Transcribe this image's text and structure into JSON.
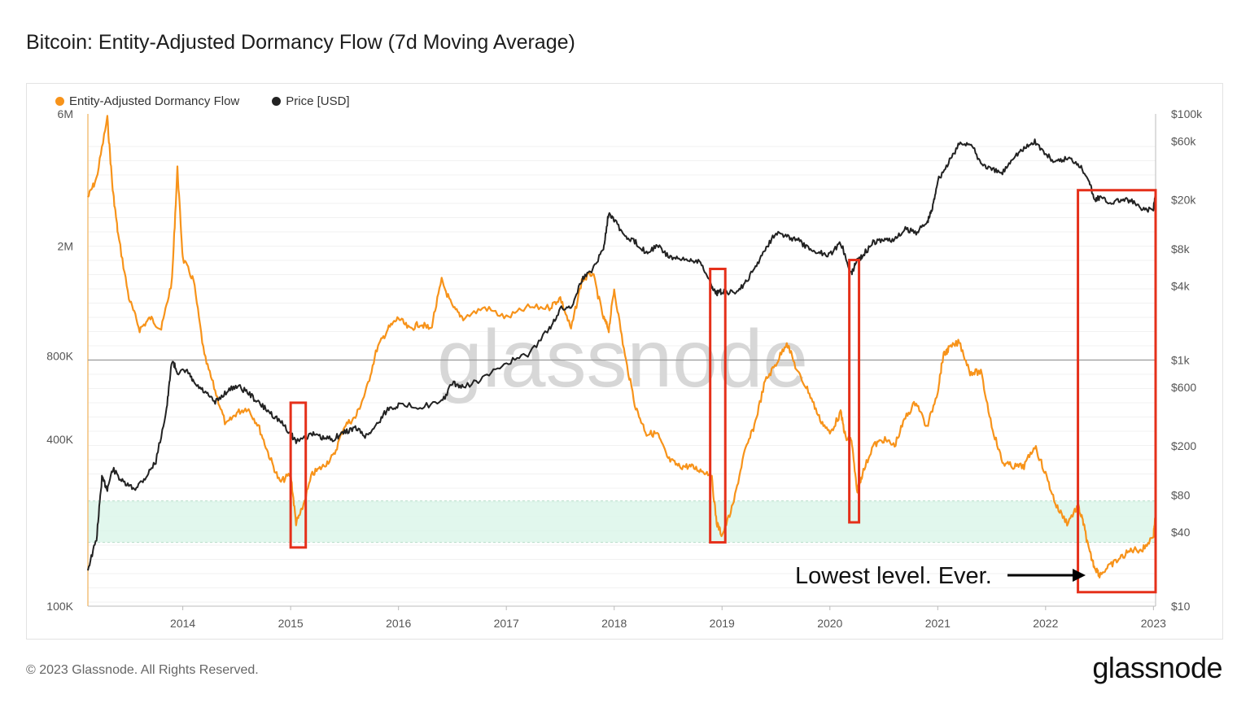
{
  "title": "Bitcoin: Entity-Adjusted Dormancy Flow (7d Moving Average)",
  "footer": "© 2023 Glassnode. All Rights Reserved.",
  "brand": "glassnode",
  "watermark": "glassnode",
  "annotation": "Lowest level. Ever.",
  "colors": {
    "dormancy": "#f7931a",
    "price": "#222222",
    "highlight": "#e5301a",
    "band": "#d9f5e9"
  },
  "chart_data": {
    "type": "line",
    "legend": [
      {
        "name": "Entity-Adjusted Dormancy Flow",
        "color": "#f7931a"
      },
      {
        "name": "Price [USD]",
        "color": "#222222"
      }
    ],
    "x_ticks": [
      "2014",
      "2015",
      "2016",
      "2017",
      "2018",
      "2019",
      "2020",
      "2021",
      "2022",
      "2023"
    ],
    "x_tick_years": [
      2014,
      2015,
      2016,
      2017,
      2018,
      2019,
      2020,
      2021,
      2022,
      2023
    ],
    "xlim": [
      2013.12,
      2023.02
    ],
    "left_axis": {
      "scale": "log",
      "ticks": [
        "6M",
        "2M",
        "800K",
        "400K",
        "100K"
      ],
      "tick_values": [
        6000000,
        2000000,
        800000,
        400000,
        100000
      ],
      "ylim": [
        100000,
        6000000
      ]
    },
    "right_axis": {
      "scale": "log",
      "ticks": [
        "$100k",
        "$60k",
        "$20k",
        "$8k",
        "$4k",
        "$1k",
        "$600",
        "$200",
        "$80",
        "$40",
        "$10"
      ],
      "tick_values": [
        100000,
        60000,
        20000,
        8000,
        4000,
        1000,
        600,
        200,
        80,
        40,
        10
      ],
      "ylim": [
        10,
        100000
      ]
    },
    "reference_line": 1000,
    "green_band": [
      170000,
      240000
    ],
    "series": [
      {
        "name": "Entity-Adjusted Dormancy Flow",
        "axis": "left",
        "x": [
          2013.12,
          2013.2,
          2013.3,
          2013.35,
          2013.4,
          2013.5,
          2013.6,
          2013.7,
          2013.8,
          2013.9,
          2013.95,
          2014.0,
          2014.1,
          2014.2,
          2014.3,
          2014.4,
          2014.5,
          2014.6,
          2014.7,
          2014.8,
          2014.9,
          2015.0,
          2015.05,
          2015.1,
          2015.2,
          2015.3,
          2015.4,
          2015.5,
          2015.6,
          2015.7,
          2015.8,
          2015.9,
          2016.0,
          2016.1,
          2016.2,
          2016.3,
          2016.4,
          2016.5,
          2016.6,
          2016.8,
          2017.0,
          2017.2,
          2017.4,
          2017.5,
          2017.6,
          2017.7,
          2017.8,
          2017.9,
          2017.95,
          2018.0,
          2018.1,
          2018.2,
          2018.3,
          2018.4,
          2018.5,
          2018.6,
          2018.7,
          2018.8,
          2018.9,
          2018.95,
          2019.0,
          2019.1,
          2019.2,
          2019.3,
          2019.4,
          2019.5,
          2019.6,
          2019.7,
          2019.8,
          2019.9,
          2020.0,
          2020.1,
          2020.15,
          2020.2,
          2020.25,
          2020.3,
          2020.4,
          2020.5,
          2020.6,
          2020.7,
          2020.8,
          2020.9,
          2021.0,
          2021.05,
          2021.1,
          2021.2,
          2021.3,
          2021.4,
          2021.5,
          2021.6,
          2021.7,
          2021.8,
          2021.9,
          2022.0,
          2022.1,
          2022.2,
          2022.3,
          2022.35,
          2022.4,
          2022.45,
          2022.5,
          2022.6,
          2022.7,
          2022.8,
          2022.9,
          2023.0,
          2023.02
        ],
        "values": [
          3000000,
          3500000,
          5800000,
          3200000,
          2200000,
          1300000,
          1000000,
          1100000,
          1000000,
          1500000,
          3800000,
          1800000,
          1500000,
          800000,
          600000,
          450000,
          500000,
          520000,
          450000,
          350000,
          280000,
          300000,
          200000,
          220000,
          300000,
          320000,
          350000,
          450000,
          480000,
          600000,
          850000,
          1000000,
          1100000,
          1000000,
          1050000,
          1000000,
          1500000,
          1200000,
          1100000,
          1200000,
          1100000,
          1200000,
          1200000,
          1300000,
          1000000,
          1500000,
          1600000,
          1100000,
          1000000,
          1400000,
          800000,
          520000,
          420000,
          420000,
          340000,
          320000,
          320000,
          310000,
          300000,
          200000,
          180000,
          230000,
          350000,
          450000,
          650000,
          750000,
          900000,
          700000,
          600000,
          480000,
          420000,
          500000,
          400000,
          400000,
          260000,
          300000,
          380000,
          400000,
          380000,
          480000,
          550000,
          440000,
          600000,
          800000,
          850000,
          900000,
          700000,
          700000,
          450000,
          330000,
          320000,
          320000,
          380000,
          300000,
          230000,
          200000,
          230000,
          200000,
          160000,
          140000,
          130000,
          140000,
          150000,
          160000,
          160000,
          180000,
          215000
        ]
      },
      {
        "name": "Price [USD]",
        "axis": "right",
        "x": [
          2013.12,
          2013.2,
          2013.25,
          2013.3,
          2013.35,
          2013.45,
          2013.55,
          2013.65,
          2013.75,
          2013.85,
          2013.9,
          2013.95,
          2014.05,
          2014.1,
          2014.2,
          2014.3,
          2014.4,
          2014.5,
          2014.6,
          2014.7,
          2014.8,
          2014.9,
          2015.0,
          2015.05,
          2015.2,
          2015.3,
          2015.4,
          2015.5,
          2015.6,
          2015.7,
          2015.8,
          2015.9,
          2016.0,
          2016.2,
          2016.4,
          2016.5,
          2016.6,
          2016.8,
          2017.0,
          2017.2,
          2017.4,
          2017.5,
          2017.6,
          2017.7,
          2017.8,
          2017.9,
          2017.95,
          2018.0,
          2018.1,
          2018.2,
          2018.3,
          2018.4,
          2018.5,
          2018.6,
          2018.7,
          2018.8,
          2018.9,
          2018.95,
          2019.0,
          2019.1,
          2019.2,
          2019.3,
          2019.4,
          2019.5,
          2019.6,
          2019.7,
          2019.8,
          2019.9,
          2020.0,
          2020.1,
          2020.2,
          2020.25,
          2020.3,
          2020.4,
          2020.5,
          2020.6,
          2020.7,
          2020.8,
          2020.9,
          2020.95,
          2021.0,
          2021.1,
          2021.2,
          2021.3,
          2021.4,
          2021.5,
          2021.6,
          2021.7,
          2021.8,
          2021.9,
          2022.0,
          2022.1,
          2022.2,
          2022.3,
          2022.4,
          2022.45,
          2022.5,
          2022.6,
          2022.7,
          2022.8,
          2022.9,
          2023.0,
          2023.02
        ],
        "values": [
          20,
          35,
          110,
          90,
          130,
          100,
          90,
          110,
          150,
          400,
          1000,
          800,
          800,
          650,
          550,
          450,
          550,
          620,
          550,
          450,
          380,
          320,
          250,
          220,
          250,
          230,
          230,
          260,
          280,
          240,
          300,
          400,
          430,
          420,
          450,
          650,
          600,
          720,
          950,
          1100,
          1800,
          2600,
          2700,
          4500,
          5500,
          8000,
          16000,
          14000,
          10000,
          9000,
          7500,
          8500,
          7000,
          6500,
          6500,
          6400,
          4000,
          3500,
          3600,
          3500,
          4000,
          5500,
          8000,
          11000,
          10000,
          9500,
          8000,
          7500,
          7200,
          9000,
          5000,
          6500,
          7000,
          9000,
          9500,
          9500,
          11500,
          11000,
          13000,
          17000,
          29000,
          40000,
          57000,
          58000,
          40000,
          35000,
          33000,
          45000,
          52000,
          60000,
          47000,
          40000,
          44000,
          40000,
          30000,
          20000,
          21000,
          19000,
          20000,
          19500,
          16500,
          16800,
          23000
        ]
      }
    ],
    "highlight_boxes": [
      {
        "x": [
          2015.0,
          2015.14
        ],
        "y_price": [
          30,
          450
        ]
      },
      {
        "x": [
          2018.89,
          2019.03
        ],
        "y_price": [
          33,
          5500
        ]
      },
      {
        "x": [
          2020.18,
          2020.27
        ],
        "y_price": [
          48,
          6500
        ]
      },
      {
        "x": [
          2022.3,
          2023.02
        ],
        "y_price": [
          13,
          24000
        ]
      }
    ]
  }
}
